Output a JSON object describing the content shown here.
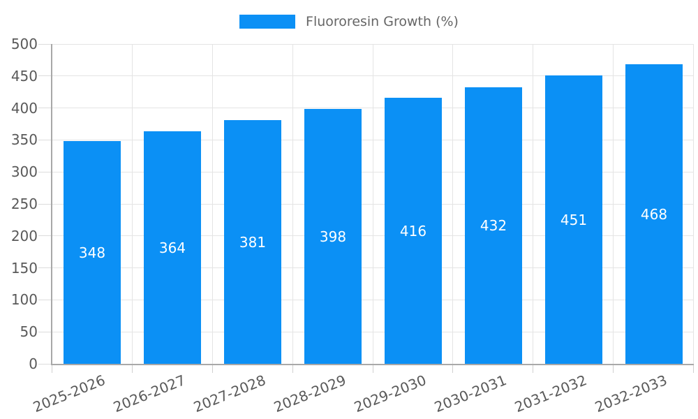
{
  "legend": {
    "label": "Fluororesin Growth (%)"
  },
  "colors": {
    "bar": "#0b90f5",
    "axis": "#a8a8a8",
    "grid": "#e4e4e4",
    "text": "#595959",
    "legend_text": "#666666",
    "value_label": "#ffffff",
    "background": "#ffffff"
  },
  "chart_data": {
    "type": "bar",
    "title": "",
    "xlabel": "",
    "ylabel": "",
    "categories": [
      "2025-2026",
      "2026-2027",
      "2027-2028",
      "2028-2029",
      "2029-2030",
      "2030-2031",
      "2031-2032",
      "2032-2033"
    ],
    "series": [
      {
        "name": "Fluororesin Growth (%)",
        "color": "#0b90f5",
        "values": [
          348,
          364,
          381,
          398,
          416,
          432,
          451,
          468
        ]
      }
    ],
    "value_labels": "inside-center",
    "ylim": [
      0,
      500
    ],
    "yticks": [
      0,
      50,
      100,
      150,
      200,
      250,
      300,
      350,
      400,
      450,
      500
    ],
    "grid": true,
    "x_label_rotation_deg": -22,
    "legend_position": "top-center"
  }
}
